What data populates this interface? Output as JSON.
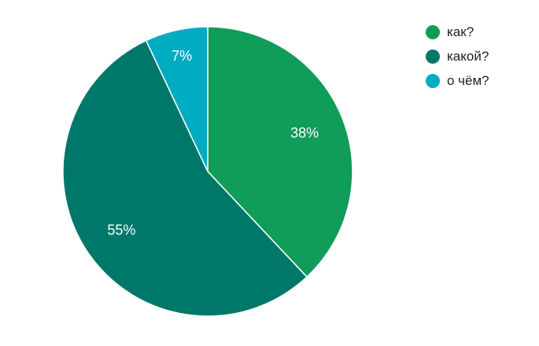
{
  "chart_data": {
    "type": "pie",
    "title": "",
    "slices": [
      {
        "label": "как?",
        "value": 38,
        "display": "38%",
        "color": "#109c59"
      },
      {
        "label": "какой?",
        "value": 55,
        "display": "55%",
        "color": "#007869"
      },
      {
        "label": "о чём?",
        "value": 7,
        "display": "7%",
        "color": "#00acc1"
      }
    ],
    "legend_position": "top-right",
    "start_angle": "top",
    "direction": "clockwise",
    "label_color": "#ffffff",
    "border_color": "#ffffff"
  }
}
